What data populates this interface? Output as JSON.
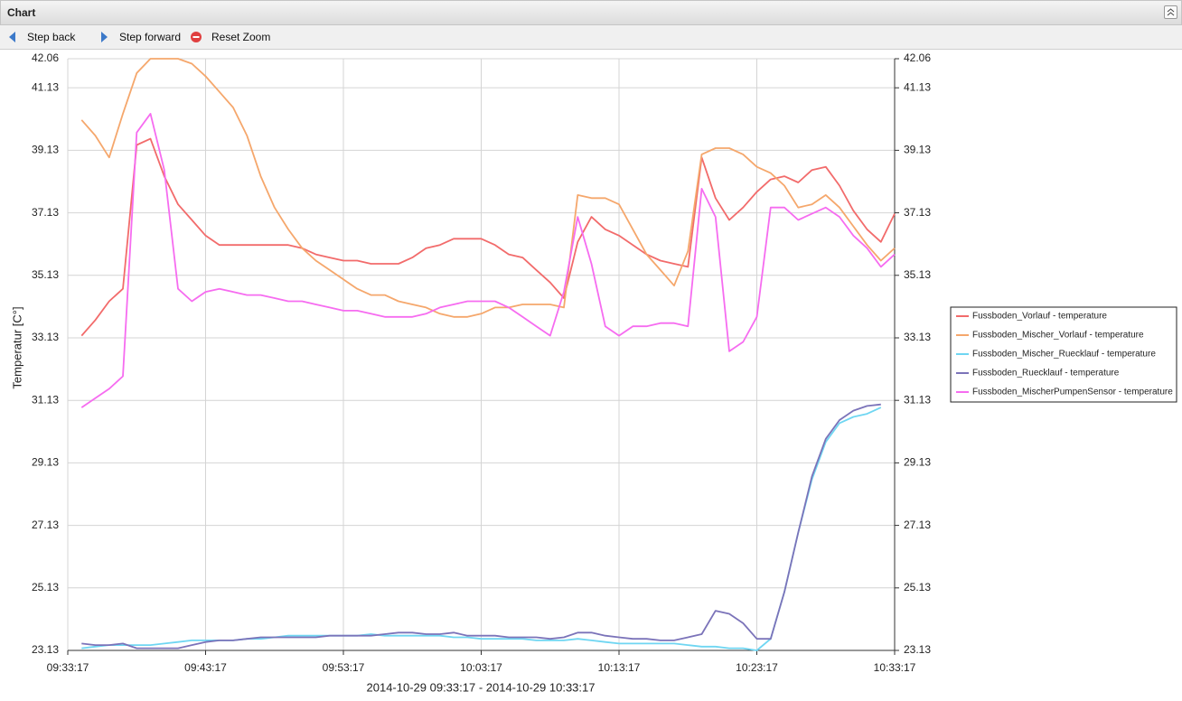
{
  "header": {
    "title": "Chart"
  },
  "toolbar": {
    "buttons": [
      "Step back",
      "Step forward",
      "Reset Zoom"
    ]
  },
  "chart_data": {
    "type": "line",
    "y_label": "Temperatur [C°]",
    "x_label": "2014-10-29 09:33:17 - 2014-10-29 10:33:17",
    "x": [
      "09:34:17",
      "09:35:17",
      "09:36:17",
      "09:37:17",
      "09:38:17",
      "09:39:17",
      "09:40:17",
      "09:41:17",
      "09:42:17",
      "09:43:17",
      "09:44:17",
      "09:45:17",
      "09:46:17",
      "09:47:17",
      "09:48:17",
      "09:49:17",
      "09:50:17",
      "09:51:17",
      "09:52:17",
      "09:53:17",
      "09:54:17",
      "09:55:17",
      "09:56:17",
      "09:57:17",
      "09:58:17",
      "09:59:17",
      "10:00:17",
      "10:01:17",
      "10:02:17",
      "10:03:17",
      "10:04:17",
      "10:05:17",
      "10:06:17",
      "10:07:17",
      "10:08:17",
      "10:09:17",
      "10:10:17",
      "10:11:17",
      "10:12:17",
      "10:13:17",
      "10:14:17",
      "10:15:17",
      "10:16:17",
      "10:17:17",
      "10:18:17",
      "10:19:17",
      "10:20:17",
      "10:21:17",
      "10:22:17",
      "10:23:17",
      "10:24:17",
      "10:25:17",
      "10:26:17",
      "10:27:17",
      "10:28:17",
      "10:29:17",
      "10:30:17",
      "10:31:17",
      "10:32:17",
      "10:33:17"
    ],
    "xlim": [
      "09:33:17",
      "10:33:17"
    ],
    "xticks": [
      "09:33:17",
      "09:43:17",
      "09:53:17",
      "10:03:17",
      "10:13:17",
      "10:23:17",
      "10:33:17"
    ],
    "ylim": [
      23.13,
      42.06
    ],
    "yticks": [
      23.13,
      25.13,
      27.13,
      29.13,
      31.13,
      33.13,
      35.13,
      37.13,
      39.13,
      41.13,
      42.06
    ],
    "y2lim": [
      23.13,
      42.06
    ],
    "y2ticks": [
      23.13,
      25.13,
      27.13,
      29.13,
      31.13,
      33.13,
      35.13,
      37.13,
      39.13,
      41.13,
      42.06
    ],
    "grid": true,
    "legend": "right",
    "series": [
      {
        "name": "Fussboden_Vorlauf - temperature",
        "color": "#f26b6b",
        "values": [
          33.2,
          33.7,
          34.3,
          34.7,
          39.3,
          39.5,
          38.3,
          37.4,
          36.9,
          36.4,
          36.1,
          36.1,
          36.1,
          36.1,
          36.1,
          36.1,
          36.0,
          35.8,
          35.7,
          35.6,
          35.6,
          35.5,
          35.5,
          35.5,
          35.7,
          36.0,
          36.1,
          36.3,
          36.3,
          36.3,
          36.1,
          35.8,
          35.7,
          35.3,
          34.9,
          34.4,
          36.2,
          37.0,
          36.6,
          36.4,
          36.1,
          35.8,
          35.6,
          35.5,
          35.4,
          38.9,
          37.6,
          36.9,
          37.3,
          37.8,
          38.2,
          38.3,
          38.1,
          38.5,
          38.6,
          38.0,
          37.2,
          36.6,
          36.2,
          37.1
        ]
      },
      {
        "name": "Fussboden_Mischer_Vorlauf - temperature",
        "color": "#f5a76c",
        "values": [
          40.1,
          39.6,
          38.9,
          40.3,
          41.6,
          42.06,
          42.06,
          42.06,
          41.9,
          41.5,
          41.0,
          40.5,
          39.6,
          38.3,
          37.3,
          36.6,
          36.0,
          35.6,
          35.3,
          35.0,
          34.7,
          34.5,
          34.5,
          34.3,
          34.2,
          34.1,
          33.9,
          33.8,
          33.8,
          33.9,
          34.1,
          34.1,
          34.2,
          34.2,
          34.2,
          34.1,
          37.7,
          37.6,
          37.6,
          37.4,
          36.6,
          35.8,
          35.3,
          34.8,
          35.9,
          39.0,
          39.2,
          39.2,
          39.0,
          38.6,
          38.4,
          38.0,
          37.3,
          37.4,
          37.7,
          37.3,
          36.7,
          36.1,
          35.6,
          36.0
        ]
      },
      {
        "name": "Fussboden_Mischer_Ruecklauf - temperature",
        "color": "#6fd6f2",
        "values": [
          23.2,
          23.25,
          23.3,
          23.3,
          23.3,
          23.3,
          23.35,
          23.4,
          23.45,
          23.45,
          23.45,
          23.45,
          23.5,
          23.5,
          23.55,
          23.6,
          23.6,
          23.6,
          23.6,
          23.6,
          23.6,
          23.65,
          23.6,
          23.6,
          23.6,
          23.6,
          23.6,
          23.55,
          23.55,
          23.5,
          23.5,
          23.5,
          23.5,
          23.45,
          23.45,
          23.45,
          23.5,
          23.45,
          23.4,
          23.35,
          23.35,
          23.35,
          23.35,
          23.35,
          23.3,
          23.25,
          23.25,
          23.2,
          23.2,
          23.13,
          23.5,
          25.0,
          26.9,
          28.6,
          29.8,
          30.4,
          30.6,
          30.7,
          30.9,
          null
        ]
      },
      {
        "name": "Fussboden_Ruecklauf - temperature",
        "color": "#7b73b9",
        "values": [
          23.35,
          23.3,
          23.3,
          23.35,
          23.2,
          23.2,
          23.2,
          23.2,
          23.3,
          23.4,
          23.45,
          23.45,
          23.5,
          23.55,
          23.55,
          23.55,
          23.55,
          23.55,
          23.6,
          23.6,
          23.6,
          23.6,
          23.65,
          23.7,
          23.7,
          23.65,
          23.65,
          23.7,
          23.6,
          23.6,
          23.6,
          23.55,
          23.55,
          23.55,
          23.5,
          23.55,
          23.7,
          23.7,
          23.6,
          23.55,
          23.5,
          23.5,
          23.45,
          23.45,
          23.55,
          23.65,
          24.4,
          24.3,
          24.0,
          23.5,
          23.5,
          25.0,
          26.9,
          28.7,
          29.9,
          30.5,
          30.8,
          30.95,
          31.0,
          null
        ]
      },
      {
        "name": "Fussboden_MischerPumpenSensor - temperature",
        "color": "#f66cf0",
        "values": [
          30.9,
          31.2,
          31.5,
          31.9,
          39.7,
          40.3,
          38.5,
          34.7,
          34.3,
          34.6,
          34.7,
          34.6,
          34.5,
          34.5,
          34.4,
          34.3,
          34.3,
          34.2,
          34.1,
          34.0,
          34.0,
          33.9,
          33.8,
          33.8,
          33.8,
          33.9,
          34.1,
          34.2,
          34.3,
          34.3,
          34.3,
          34.1,
          33.8,
          33.5,
          33.2,
          34.6,
          37.0,
          35.5,
          33.5,
          33.2,
          33.5,
          33.5,
          33.6,
          33.6,
          33.5,
          37.9,
          37.0,
          32.7,
          33.0,
          33.8,
          37.3,
          37.3,
          36.9,
          37.1,
          37.3,
          37.0,
          36.4,
          36.0,
          35.4,
          35.8
        ]
      }
    ]
  }
}
